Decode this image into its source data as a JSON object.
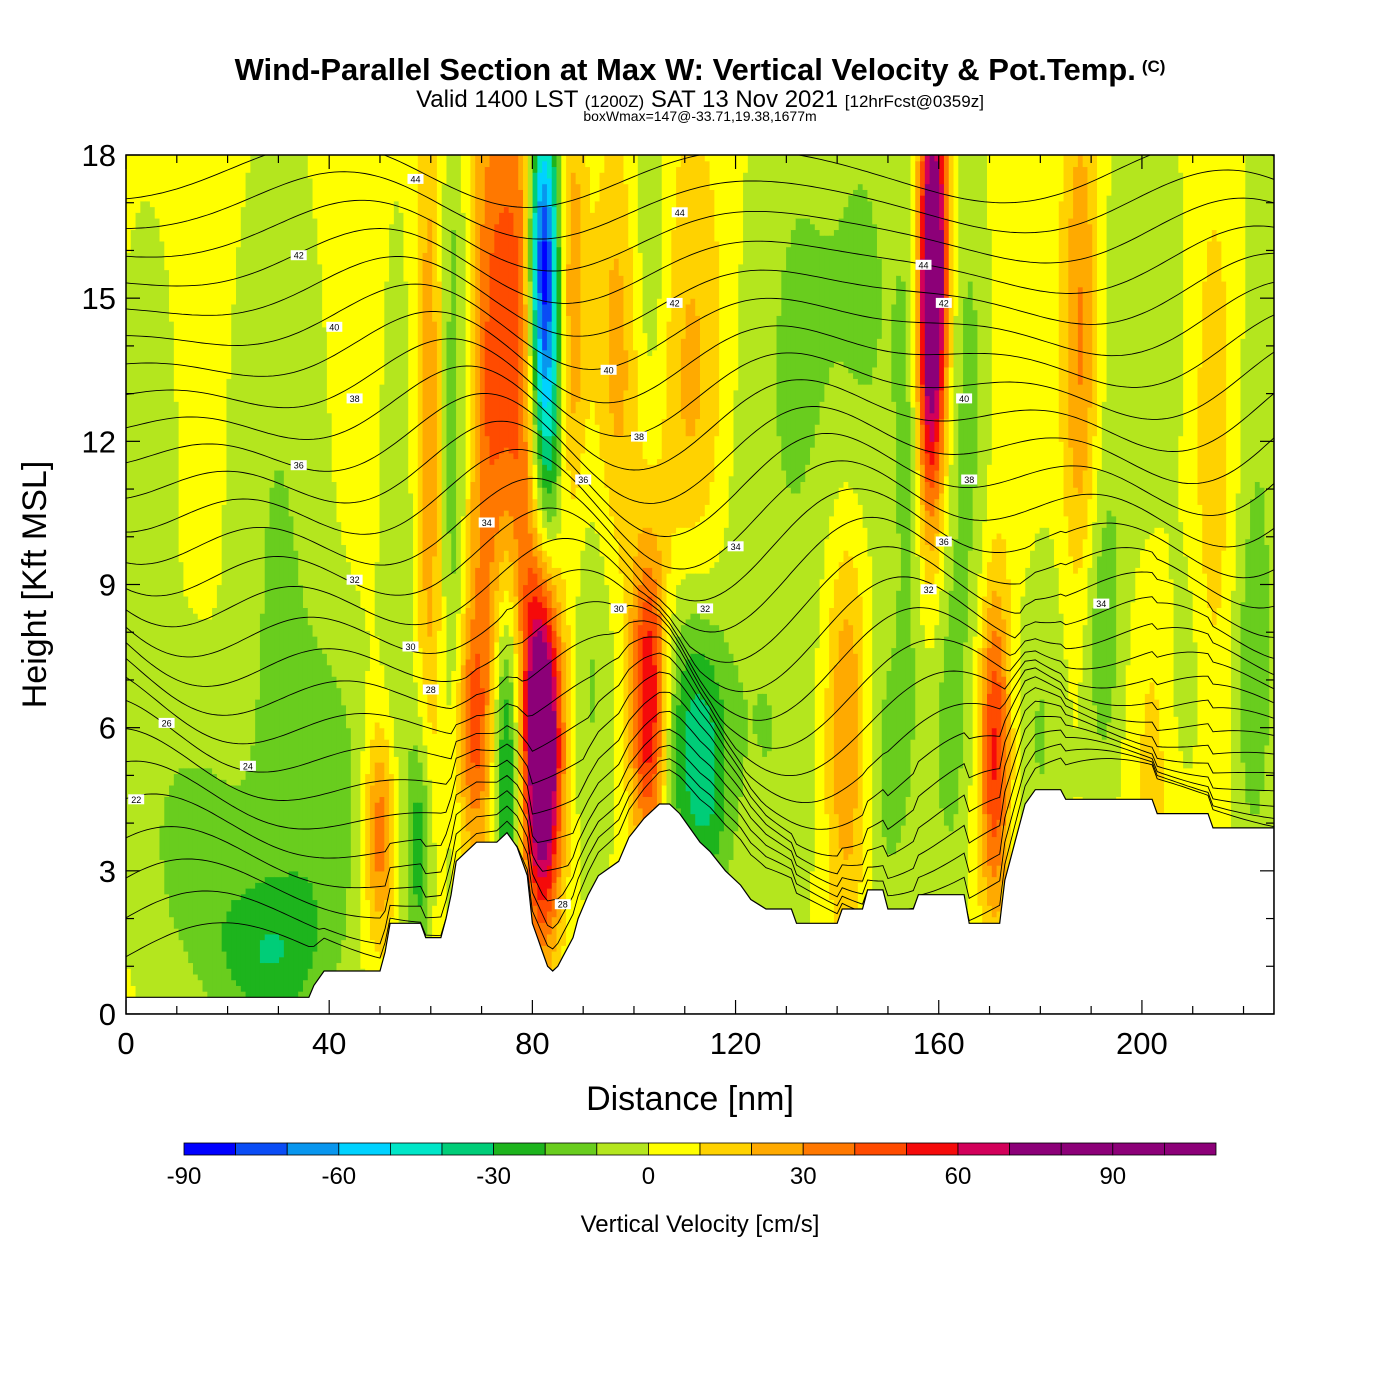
{
  "header": {
    "title": "Wind-Parallel Section at Max W: Vertical Velocity & Pot.Temp.",
    "copyright": "(C)",
    "subtitle_a": "Valid 1400 LST",
    "subtitle_b": "(1200Z)",
    "subtitle_c": "SAT 13 Nov 2021",
    "subtitle_d": "[12hrFcst@0359z]",
    "boxinfo": "boxWmax=147@-33.71,19.38,1677m"
  },
  "chart_data": {
    "type": "heatmap",
    "xlabel": "Distance [nm]",
    "ylabel": "Height [Kft MSL]",
    "xlim": [
      0,
      226
    ],
    "ylim": [
      0,
      18
    ],
    "x_ticks": [
      0,
      40,
      80,
      120,
      160,
      200
    ],
    "y_ticks": [
      0,
      3,
      6,
      9,
      12,
      15,
      18
    ],
    "background_value": 3,
    "colorbar": {
      "label": "Vertical Velocity [cm/s]",
      "min": -90,
      "max": 110,
      "step": 10,
      "tick_labels": [
        -90,
        -60,
        -30,
        0,
        30,
        60,
        90
      ],
      "colors": [
        "#0000ff",
        "#0a4cf5",
        "#0896ee",
        "#00d2ff",
        "#00e6c8",
        "#00cd78",
        "#1db41d",
        "#69cd1e",
        "#b4e61e",
        "#ffff00",
        "#ffd200",
        "#ffaa00",
        "#ff7800",
        "#ff4b00",
        "#f50a0a",
        "#d2005a",
        "#8c0078"
      ]
    },
    "velocity_features": [
      {
        "x": 4,
        "z": 11,
        "w": -5,
        "sx": 6,
        "sz": 6
      },
      {
        "x": 14,
        "z": 3.5,
        "w": -16,
        "sx": 8,
        "sz": 2.2
      },
      {
        "x": 28,
        "z": 1.2,
        "w": -25,
        "sx": 8,
        "sz": 1.2
      },
      {
        "x": 30,
        "z": 9,
        "w": -14,
        "sx": 6,
        "sz": 6
      },
      {
        "x": 40,
        "z": 4.5,
        "w": -18,
        "sx": 6,
        "sz": 2.5
      },
      {
        "x": 50,
        "z": 3.8,
        "w": 38,
        "sx": 2.2,
        "sz": 1.6
      },
      {
        "x": 54,
        "z": 9,
        "w": -12,
        "sx": 2.5,
        "sz": 5
      },
      {
        "x": 58,
        "z": 3.5,
        "w": -32,
        "sx": 1.8,
        "sz": 1.8
      },
      {
        "x": 60,
        "z": 12,
        "w": 26,
        "sx": 2.2,
        "sz": 6
      },
      {
        "x": 64,
        "z": 12,
        "w": -22,
        "sx": 2.0,
        "sz": 6
      },
      {
        "x": 68,
        "z": 6,
        "w": 32,
        "sx": 2.5,
        "sz": 1.8
      },
      {
        "x": 70,
        "z": 12,
        "w": 22,
        "sx": 2.2,
        "sz": 6
      },
      {
        "x": 74,
        "z": 14,
        "w": 36,
        "sx": 2.6,
        "sz": 5
      },
      {
        "x": 75,
        "z": 5.5,
        "w": -45,
        "sx": 2.0,
        "sz": 2.8
      },
      {
        "x": 78,
        "z": 14,
        "w": 28,
        "sx": 2.0,
        "sz": 5
      },
      {
        "x": 82,
        "z": 5.8,
        "w": 112,
        "sx": 2.6,
        "sz": 2.6
      },
      {
        "x": 82,
        "z": 16,
        "w": -65,
        "sx": 2.0,
        "sz": 2.2
      },
      {
        "x": 83,
        "z": 12.5,
        "w": -40,
        "sx": 2.0,
        "sz": 3.5
      },
      {
        "x": 88,
        "z": 15,
        "w": 26,
        "sx": 1.8,
        "sz": 3
      },
      {
        "x": 92,
        "z": 7,
        "w": -14,
        "sx": 3,
        "sz": 3
      },
      {
        "x": 97,
        "z": 14,
        "w": 22,
        "sx": 3.5,
        "sz": 3
      },
      {
        "x": 103,
        "z": 6.5,
        "w": 62,
        "sx": 2.5,
        "sz": 2.2
      },
      {
        "x": 103,
        "z": 15.5,
        "w": -18,
        "sx": 3,
        "sz": 3
      },
      {
        "x": 110,
        "z": 6,
        "w": -32,
        "sx": 4,
        "sz": 2.5
      },
      {
        "x": 112,
        "z": 13,
        "w": 22,
        "sx": 6,
        "sz": 4
      },
      {
        "x": 115,
        "z": 5,
        "w": -22,
        "sx": 3,
        "sz": 2
      },
      {
        "x": 120,
        "z": 11,
        "w": -12,
        "sx": 5,
        "sz": 5
      },
      {
        "x": 128,
        "z": 5,
        "w": -10,
        "sx": 6,
        "sz": 3
      },
      {
        "x": 132,
        "z": 14,
        "w": -14,
        "sx": 5,
        "sz": 4
      },
      {
        "x": 142,
        "z": 6,
        "w": 30,
        "sx": 3,
        "sz": 3
      },
      {
        "x": 145,
        "z": 15,
        "w": -15,
        "sx": 6,
        "sz": 4
      },
      {
        "x": 150,
        "z": 5,
        "w": -16,
        "sx": 4,
        "sz": 2.5
      },
      {
        "x": 155,
        "z": 12,
        "w": -18,
        "sx": 2.5,
        "sz": 4
      },
      {
        "x": 159,
        "z": 16,
        "w": 82,
        "sx": 2.0,
        "sz": 2.6
      },
      {
        "x": 158,
        "z": 13,
        "w": 45,
        "sx": 2.0,
        "sz": 3
      },
      {
        "x": 162,
        "z": 6,
        "w": -16,
        "sx": 3,
        "sz": 3
      },
      {
        "x": 166,
        "z": 13,
        "w": -16,
        "sx": 3,
        "sz": 4
      },
      {
        "x": 171,
        "z": 5.5,
        "w": 50,
        "sx": 2.2,
        "sz": 2.4
      },
      {
        "x": 176,
        "z": 14,
        "w": 6,
        "sx": 4,
        "sz": 4
      },
      {
        "x": 180,
        "z": 6,
        "w": -14,
        "sx": 4,
        "sz": 3
      },
      {
        "x": 188,
        "z": 14,
        "w": 30,
        "sx": 2.5,
        "sz": 4
      },
      {
        "x": 192,
        "z": 8,
        "w": -20,
        "sx": 3,
        "sz": 2.5
      },
      {
        "x": 200,
        "z": 14,
        "w": -12,
        "sx": 6,
        "sz": 4
      },
      {
        "x": 203,
        "z": 6,
        "w": 12,
        "sx": 4,
        "sz": 3
      },
      {
        "x": 208,
        "z": 7,
        "w": -12,
        "sx": 3,
        "sz": 2
      },
      {
        "x": 214,
        "z": 12,
        "w": 14,
        "sx": 3,
        "sz": 4
      },
      {
        "x": 222,
        "z": 7,
        "w": -20,
        "sx": 3,
        "sz": 3
      },
      {
        "x": 224,
        "z": 15,
        "w": -10,
        "sx": 3,
        "sz": 4
      }
    ],
    "terrain": [
      [
        0,
        0.35
      ],
      [
        36,
        0.35
      ],
      [
        37,
        0.6
      ],
      [
        39,
        0.9
      ],
      [
        50,
        0.9
      ],
      [
        51,
        1.3
      ],
      [
        52,
        1.9
      ],
      [
        58,
        1.9
      ],
      [
        59,
        1.6
      ],
      [
        62,
        1.6
      ],
      [
        63,
        2.0
      ],
      [
        64,
        2.5
      ],
      [
        65,
        3.2
      ],
      [
        67,
        3.4
      ],
      [
        69,
        3.6
      ],
      [
        73,
        3.6
      ],
      [
        75,
        3.8
      ],
      [
        77,
        3.5
      ],
      [
        78,
        3.2
      ],
      [
        79,
        2.9
      ],
      [
        80,
        1.9
      ],
      [
        81,
        1.6
      ],
      [
        82,
        1.3
      ],
      [
        83,
        1.0
      ],
      [
        84,
        0.9
      ],
      [
        85,
        1.0
      ],
      [
        86,
        1.2
      ],
      [
        88,
        1.6
      ],
      [
        89,
        2.0
      ],
      [
        91,
        2.5
      ],
      [
        93,
        2.9
      ],
      [
        97,
        3.2
      ],
      [
        99,
        3.7
      ],
      [
        102,
        4.1
      ],
      [
        105,
        4.4
      ],
      [
        107,
        4.4
      ],
      [
        109,
        4.2
      ],
      [
        111,
        3.9
      ],
      [
        113,
        3.6
      ],
      [
        115,
        3.4
      ],
      [
        118,
        3.0
      ],
      [
        121,
        2.7
      ],
      [
        123,
        2.4
      ],
      [
        126,
        2.2
      ],
      [
        131,
        2.2
      ],
      [
        132,
        1.9
      ],
      [
        140,
        1.9
      ],
      [
        141,
        2.2
      ],
      [
        145,
        2.2
      ],
      [
        146,
        2.6
      ],
      [
        149,
        2.6
      ],
      [
        150,
        2.2
      ],
      [
        155,
        2.2
      ],
      [
        156,
        2.5
      ],
      [
        165,
        2.5
      ],
      [
        166,
        1.9
      ],
      [
        172,
        1.9
      ],
      [
        173,
        2.8
      ],
      [
        174,
        3.2
      ],
      [
        175,
        3.6
      ],
      [
        176,
        4.0
      ],
      [
        177,
        4.4
      ],
      [
        179,
        4.7
      ],
      [
        184,
        4.7
      ],
      [
        185,
        4.5
      ],
      [
        202,
        4.5
      ],
      [
        203,
        4.2
      ],
      [
        213,
        4.2
      ],
      [
        214,
        3.9
      ],
      [
        226,
        3.9
      ]
    ],
    "theta_contours": {
      "start": 22,
      "step": 1,
      "count": 27,
      "labels": [
        {
          "text": "22",
          "x": 2,
          "z": 4.5
        },
        {
          "text": "24",
          "x": 24,
          "z": 5.2
        },
        {
          "text": "26",
          "x": 8,
          "z": 6.1
        },
        {
          "text": "28",
          "x": 60,
          "z": 6.8
        },
        {
          "text": "30",
          "x": 56,
          "z": 7.7
        },
        {
          "text": "32",
          "x": 45,
          "z": 9.1
        },
        {
          "text": "34",
          "x": 71,
          "z": 10.3
        },
        {
          "text": "36",
          "x": 34,
          "z": 11.5
        },
        {
          "text": "38",
          "x": 45,
          "z": 12.9
        },
        {
          "text": "40",
          "x": 41,
          "z": 14.4
        },
        {
          "text": "42",
          "x": 34,
          "z": 15.9
        },
        {
          "text": "44",
          "x": 57,
          "z": 17.5
        },
        {
          "text": "28",
          "x": 86,
          "z": 2.3
        },
        {
          "text": "30",
          "x": 97,
          "z": 8.5
        },
        {
          "text": "32",
          "x": 114,
          "z": 8.5
        },
        {
          "text": "34",
          "x": 120,
          "z": 9.8
        },
        {
          "text": "36",
          "x": 90,
          "z": 11.2
        },
        {
          "text": "38",
          "x": 101,
          "z": 12.1
        },
        {
          "text": "40",
          "x": 95,
          "z": 13.5
        },
        {
          "text": "42",
          "x": 108,
          "z": 14.9
        },
        {
          "text": "44",
          "x": 109,
          "z": 16.8
        },
        {
          "text": "44",
          "x": 157,
          "z": 15.7
        },
        {
          "text": "42",
          "x": 161,
          "z": 14.9
        },
        {
          "text": "40",
          "x": 165,
          "z": 12.9
        },
        {
          "text": "38",
          "x": 166,
          "z": 11.2
        },
        {
          "text": "36",
          "x": 161,
          "z": 9.9
        },
        {
          "text": "32",
          "x": 158,
          "z": 8.9
        },
        {
          "text": "34",
          "x": 192,
          "z": 8.6
        }
      ]
    }
  }
}
